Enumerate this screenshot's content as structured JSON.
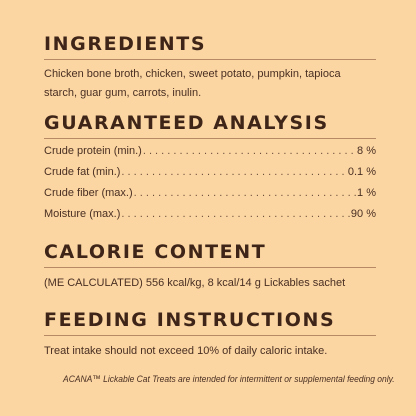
{
  "ingredients": {
    "heading": "INGREDIENTS",
    "text": "Chicken bone broth, chicken, sweet potato, pumpkin, tapioca starch, guar gum, carrots, inulin."
  },
  "analysis": {
    "heading": "GUARANTEED ANALYSIS",
    "rows": [
      {
        "label": "Crude protein (min.)",
        "value": "8 %"
      },
      {
        "label": "Crude fat (min.)",
        "value": "0.1 %"
      },
      {
        "label": "Crude fiber (max.)",
        "value": "1 %"
      },
      {
        "label": "Moisture (max.)",
        "value": "90 %"
      }
    ]
  },
  "calorie": {
    "heading": "CALORIE CONTENT",
    "text": "(ME CALCULATED) 556 kcal/kg, 8 kcal/14 g Lickables sachet"
  },
  "feeding": {
    "heading": "FEEDING INSTRUCTIONS",
    "text": "Treat intake should not exceed 10% of daily caloric intake."
  },
  "footnote": "ACANA™ Lickable Cat Treats are intended for intermittent or supplemental feeding only."
}
